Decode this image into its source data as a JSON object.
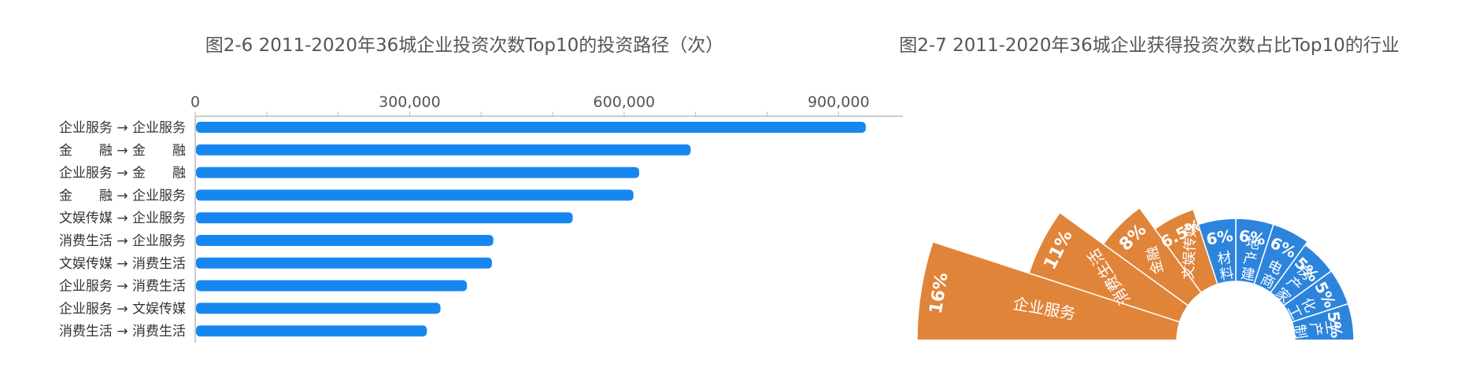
{
  "chart_data": [
    {
      "type": "bar",
      "orientation": "horizontal",
      "title": "图2-6 2011-2020年36城企业投资次数Top10的投资路径（次）",
      "categories": [
        "企业服务 → 企业服务",
        "金　　融 → 金　　融",
        "企业服务 → 金　　融",
        "金　　融 → 企业服务",
        "文娱传媒 → 企业服务",
        "消费生活 → 企业服务",
        "文娱传媒 → 消费生活",
        "企业服务 → 消费生活",
        "企业服务 → 文娱传媒",
        "消费生活 → 消费生活"
      ],
      "values": [
        937000,
        692000,
        620000,
        612000,
        527000,
        416000,
        414000,
        379000,
        342000,
        323000
      ],
      "xlim": [
        0,
        990000
      ],
      "xticks": [
        "0",
        "300,000",
        "600,000",
        "900,000"
      ],
      "xtick_values": [
        0,
        300000,
        600000,
        900000
      ],
      "color": "#1787f0",
      "axis_position": "top",
      "grid": false
    },
    {
      "type": "pie",
      "style": "rose-half",
      "title": "图2-7 2011-2020年36城企业获得投资次数占比Top10的行业",
      "slices": [
        {
          "name": "企业服务",
          "pct_label": "16%",
          "value": 16,
          "color": "#e0843a"
        },
        {
          "name": "消费生活",
          "pct_label": "11%",
          "value": 11,
          "color": "#e0843a"
        },
        {
          "name": "金融",
          "pct_label": "8%",
          "value": 8,
          "color": "#e0843a"
        },
        {
          "name": "文娱传媒",
          "pct_label": "6.5%",
          "value": 6.5,
          "color": "#e0843a"
        },
        {
          "name": "材料",
          "pct_label": "6%",
          "value": 6,
          "color": "#2d84dc"
        },
        {
          "name": "地产建筑",
          "pct_label": "6%",
          "value": 6,
          "color": "#2d84dc"
        },
        {
          "name": "电商",
          "pct_label": "6%",
          "value": 6,
          "color": "#2d84dc"
        },
        {
          "name": "房产家居",
          "pct_label": "5%",
          "value": 5,
          "color": "#2d84dc"
        },
        {
          "name": "化工",
          "pct_label": "5%",
          "value": 5,
          "color": "#2d84dc"
        },
        {
          "name": "生产制造",
          "pct_label": "5%",
          "value": 5,
          "color": "#2d84dc"
        }
      ]
    }
  ]
}
